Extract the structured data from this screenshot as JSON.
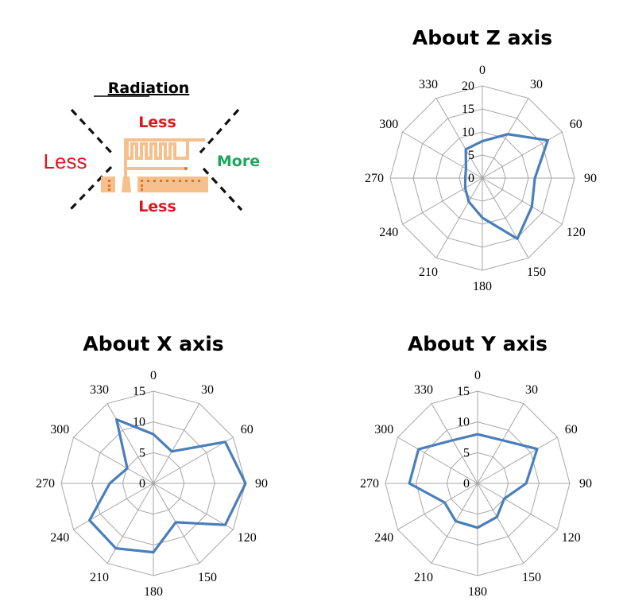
{
  "diagram": {
    "title": "Radiation",
    "top_label": "Less",
    "left_label": "Less",
    "right_label": "More",
    "bottom_label": "Less",
    "colors": {
      "less": "#e0161e",
      "more": "#1ea65a",
      "antenna": "#f6c08c",
      "antenna_dots": "#d9742a"
    }
  },
  "chart_data": [
    {
      "type": "radar",
      "title": "About Z axis",
      "categories": [
        "0",
        "30",
        "60",
        "90",
        "120",
        "150",
        "180",
        "210",
        "240",
        "270",
        "300",
        "330"
      ],
      "rlim": [
        0,
        20
      ],
      "rticks": [
        "0",
        "5",
        "10",
        "15",
        "20"
      ],
      "series": [
        {
          "name": "Z",
          "color": "#4a7ebb",
          "values": [
            8,
            11,
            16.4,
            11.4,
            12.4,
            15.2,
            8.6,
            5.9,
            4.3,
            3.7,
            4.1,
            7.2
          ]
        }
      ]
    },
    {
      "type": "radar",
      "title": "About X axis",
      "categories": [
        "0",
        "30",
        "60",
        "90",
        "120",
        "150",
        "180",
        "210",
        "240",
        "270",
        "300",
        "330"
      ],
      "rlim": [
        0,
        15
      ],
      "rticks": [
        "0",
        "5",
        "10",
        "15"
      ],
      "series": [
        {
          "name": "X",
          "color": "#4a7ebb",
          "values": [
            8,
            6,
            13.5,
            15,
            13.5,
            7.3,
            11.2,
            12.2,
            12,
            7.1,
            4.9,
            12
          ]
        }
      ]
    },
    {
      "type": "radar",
      "title": "About Y axis",
      "categories": [
        "0",
        "30",
        "60",
        "90",
        "120",
        "150",
        "180",
        "210",
        "240",
        "270",
        "300",
        "330"
      ],
      "rlim": [
        0,
        15
      ],
      "rticks": [
        "0",
        "5",
        "10",
        "15"
      ],
      "series": [
        {
          "name": "Y",
          "color": "#4a7ebb",
          "values": [
            8,
            8.1,
            11.2,
            7.9,
            5,
            6.3,
            7.2,
            7.1,
            6.2,
            11.1,
            11.1,
            8.1
          ]
        }
      ]
    }
  ]
}
